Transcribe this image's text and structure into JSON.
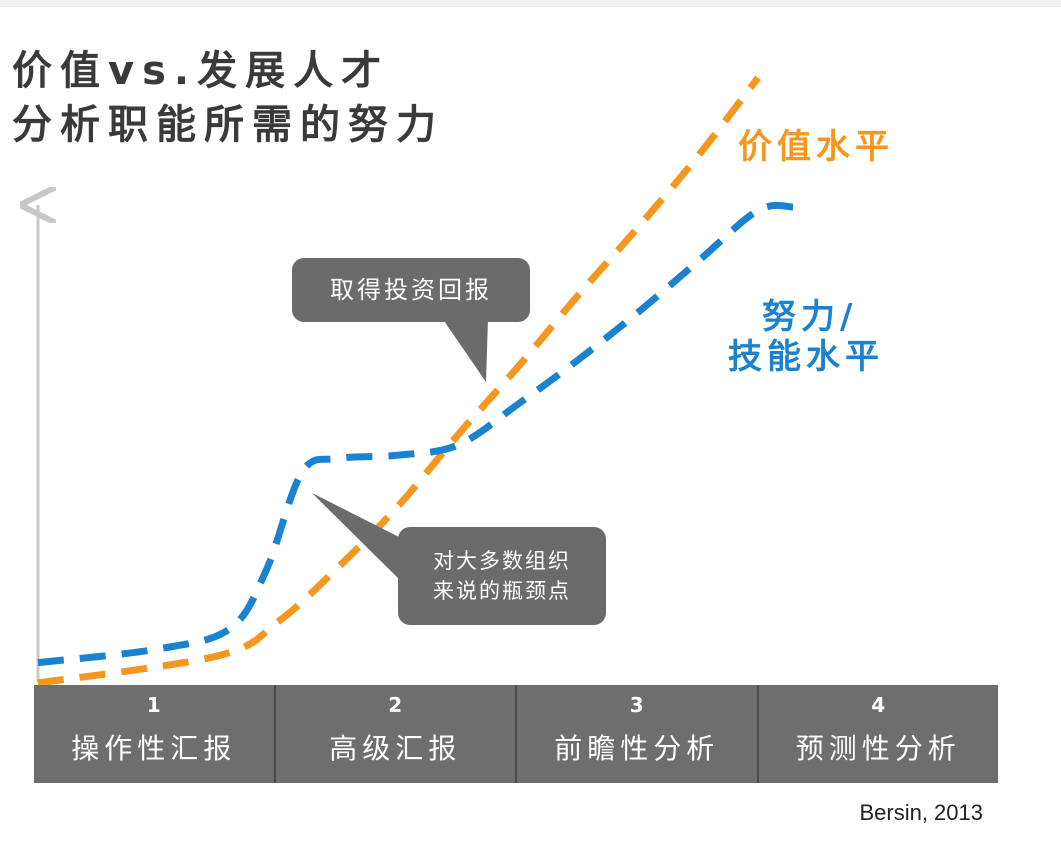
{
  "title_lines": [
    "价值vs.发展人才",
    "分析职能所需的努力"
  ],
  "colors": {
    "value_series": "#f5961e",
    "effort_series": "#1b82cf",
    "callout_bg": "#6b6b6b",
    "stage_bar_bg": "#6e6e6e",
    "axis": "#c8c8c8"
  },
  "chart_data": {
    "type": "line",
    "x_categories": [
      "1",
      "2",
      "3",
      "4"
    ],
    "series": [
      {
        "name": "价值水平",
        "style": "dashed",
        "color": "#f5961e",
        "x": [
          0.0,
          0.75,
          1.0,
          1.25,
          1.5,
          1.75,
          2.0,
          2.25,
          2.5,
          2.75,
          3.0
        ],
        "y": [
          0.0,
          0.08,
          0.18,
          0.34,
          0.52,
          0.73,
          0.93,
          1.14,
          1.34,
          1.55,
          1.78
        ]
      },
      {
        "name": "努力/技能水平",
        "style": "dashed",
        "color": "#1b82cf",
        "x": [
          0.0,
          0.5,
          0.8,
          0.95,
          1.1,
          1.25,
          1.5,
          1.75,
          2.0,
          2.25,
          2.5,
          2.75,
          3.0,
          3.15
        ],
        "y": [
          0.06,
          0.1,
          0.16,
          0.33,
          0.62,
          0.66,
          0.67,
          0.7,
          0.82,
          0.95,
          1.09,
          1.24,
          1.39,
          1.4
        ]
      }
    ],
    "legend_placement": "right-of-lines",
    "grid": false,
    "y_axis": "arrow-only, no ticks"
  },
  "series_labels": {
    "value": "价值水平",
    "effort_line1": "努力/",
    "effort_line2": "技能水平"
  },
  "callouts": {
    "roi": "取得投资回报",
    "bottleneck_line1": "对大多数组织",
    "bottleneck_line2": "来说的瓶颈点"
  },
  "stages": [
    {
      "num": "1",
      "label": "操作性汇报"
    },
    {
      "num": "2",
      "label": "高级汇报"
    },
    {
      "num": "3",
      "label": "前瞻性分析"
    },
    {
      "num": "4",
      "label": "预测性分析"
    }
  ],
  "source": "Bersin, 2013"
}
